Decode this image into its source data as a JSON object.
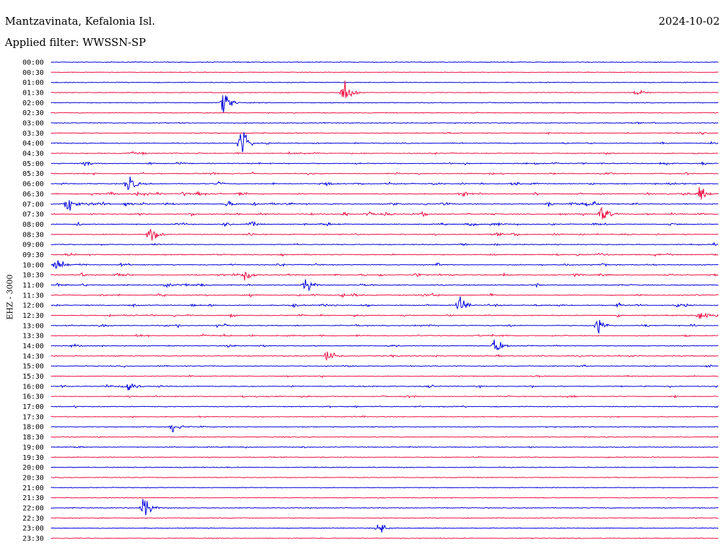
{
  "header": {
    "station": "Mantzavinata, Kefalonia Isl.",
    "date": "2024-10-02",
    "filter": "Applied filter: WWSSN-SP",
    "channel": "EHZ - 3000"
  },
  "colors": {
    "odd_trace": "#0000dd",
    "even_trace": "#ee1144",
    "text": "#000000"
  },
  "chart_data": {
    "type": "line",
    "title": "",
    "xlabel": "",
    "ylabel": "EHZ - 3000",
    "rows": [
      "00:00",
      "00:30",
      "01:00",
      "01:30",
      "02:00",
      "02:30",
      "03:00",
      "03:30",
      "04:00",
      "04:30",
      "05:00",
      "05:30",
      "06:00",
      "06:30",
      "07:00",
      "07:30",
      "08:00",
      "08:30",
      "09:00",
      "09:30",
      "10:00",
      "10:30",
      "11:00",
      "11:30",
      "12:00",
      "12:30",
      "13:00",
      "13:30",
      "14:00",
      "14:30",
      "15:00",
      "15:30",
      "16:00",
      "16:30",
      "17:00",
      "17:30",
      "18:00",
      "18:30",
      "19:00",
      "19:30",
      "20:00",
      "20:30",
      "21:00",
      "21:30",
      "22:00",
      "22:30",
      "23:00",
      "23:30"
    ],
    "row_minutes": 30,
    "activity": [
      0.05,
      0.04,
      0.08,
      0.1,
      0.12,
      0.25,
      0.3,
      0.35,
      0.45,
      0.5,
      0.55,
      0.6,
      0.7,
      0.75,
      0.8,
      0.75,
      0.7,
      0.6,
      0.5,
      0.55,
      0.65,
      0.7,
      0.6,
      0.65,
      0.7,
      0.6,
      0.65,
      0.6,
      0.55,
      0.5,
      0.45,
      0.45,
      0.5,
      0.45,
      0.4,
      0.35,
      0.35,
      0.35,
      0.35,
      0.3,
      0.25,
      0.2,
      0.2,
      0.15,
      0.15,
      0.12,
      0.1,
      0.1
    ],
    "events": [
      {
        "row": 3,
        "minute": 13.2,
        "amp": 1.6
      },
      {
        "row": 3,
        "minute": 26.4,
        "amp": 0.5
      },
      {
        "row": 4,
        "minute": 7.8,
        "amp": 1.2
      },
      {
        "row": 8,
        "minute": 8.6,
        "amp": 1.6
      },
      {
        "row": 12,
        "minute": 3.5,
        "amp": 1.0
      },
      {
        "row": 13,
        "minute": 29.2,
        "amp": 0.8
      },
      {
        "row": 14,
        "minute": 0.8,
        "amp": 0.9
      },
      {
        "row": 15,
        "minute": 24.8,
        "amp": 0.9
      },
      {
        "row": 17,
        "minute": 4.5,
        "amp": 1.0
      },
      {
        "row": 20,
        "minute": 0.3,
        "amp": 0.8
      },
      {
        "row": 21,
        "minute": 8.8,
        "amp": 0.8
      },
      {
        "row": 22,
        "minute": 11.5,
        "amp": 0.8
      },
      {
        "row": 24,
        "minute": 18.4,
        "amp": 0.9
      },
      {
        "row": 25,
        "minute": 29.2,
        "amp": 0.8
      },
      {
        "row": 26,
        "minute": 24.6,
        "amp": 0.9
      },
      {
        "row": 28,
        "minute": 20.0,
        "amp": 1.0
      },
      {
        "row": 29,
        "minute": 12.5,
        "amp": 1.0
      },
      {
        "row": 32,
        "minute": 3.5,
        "amp": 0.8
      },
      {
        "row": 36,
        "minute": 5.5,
        "amp": 0.6
      },
      {
        "row": 44,
        "minute": 4.2,
        "amp": 1.2
      },
      {
        "row": 46,
        "minute": 14.8,
        "amp": 0.6
      }
    ]
  }
}
